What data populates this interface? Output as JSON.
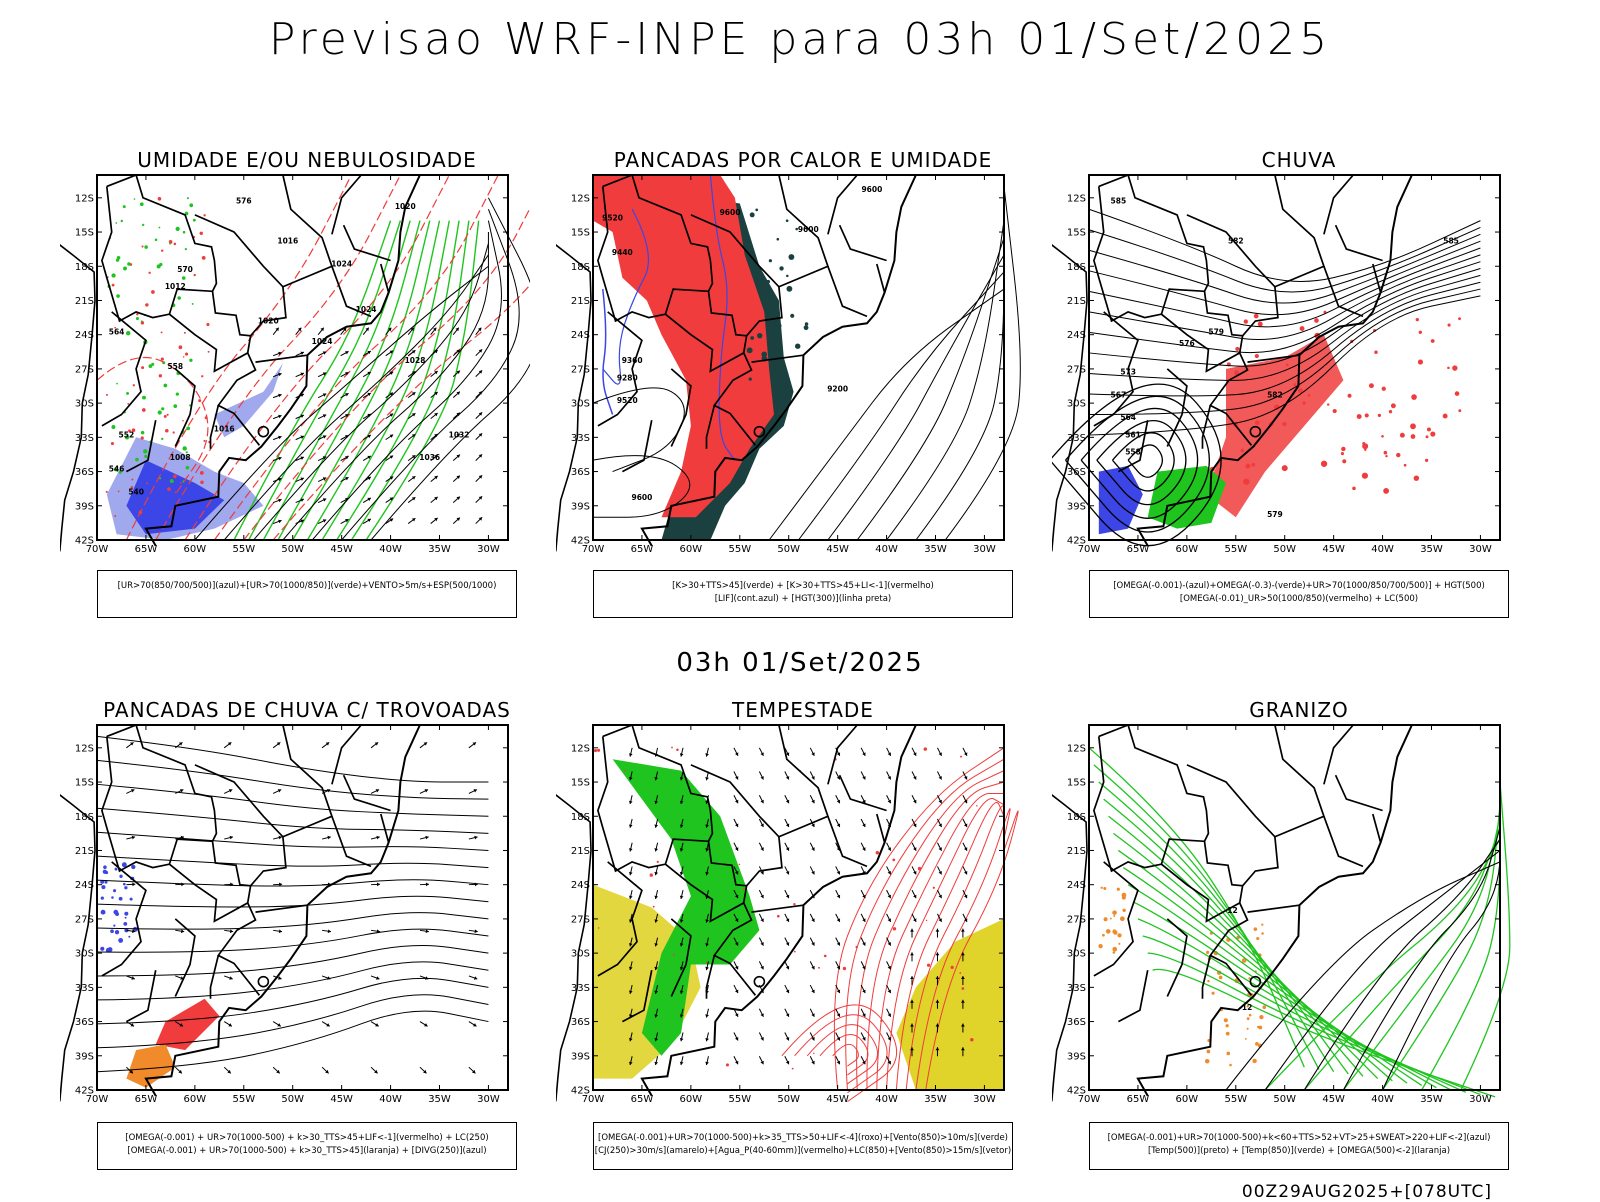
{
  "title": "Previsao WRF-INPE  para 03h 01/Set/2025",
  "mid_time": "03h 01/Set/2025",
  "run_tag": "00Z29AUG2025+[078UTC]",
  "axes": {
    "lat_labels": [
      "12S",
      "15S",
      "18S",
      "21S",
      "24S",
      "27S",
      "30S",
      "33S",
      "36S",
      "39S",
      "42S"
    ],
    "lon_labels": [
      "70W",
      "65W",
      "60W",
      "55W",
      "50W",
      "45W",
      "40W",
      "35W",
      "30W"
    ]
  },
  "colors": {
    "red": "#f03c3c",
    "green": "#1fc41f",
    "blue": "#3c46e6",
    "lightblue": "#a0a8ee",
    "darkteal": "#1a4040",
    "yellow": "#e0d32a",
    "orange": "#f08a2a",
    "purple": "#8040c0"
  },
  "panels": [
    {
      "id": "p1",
      "title": "UMIDADE E/OU NEBULOSIDADE",
      "legend": [
        "[UR>70(850/700/500)](azul)+[UR>70(1000/850)](verde)+VENTO>5m/s+ESP(500/1000)"
      ],
      "contour_labels": [
        "1020",
        "1016",
        "1024",
        "1012",
        "1024",
        "1020",
        "1024",
        "1008",
        "1032",
        "1036",
        "1016",
        "1028",
        "576",
        "570",
        "564",
        "558",
        "552",
        "546",
        "540"
      ]
    },
    {
      "id": "p2",
      "title": "PANCADAS POR CALOR E UMIDADE",
      "legend": [
        "[K>30+TTS>45](verde) + [K>30+TTS>45+LI<-1](vermelho)",
        "[LIF](cont.azul) + [HGT(300)](linha preta)"
      ],
      "contour_labels": [
        "9600",
        "9520",
        "9600",
        "9600",
        "9440",
        "9360",
        "9280",
        "9520",
        "9200",
        "9600"
      ]
    },
    {
      "id": "p3",
      "title": "CHUVA",
      "legend": [
        "[OMEGA(-0.001)-(azul)+OMEGA(-0.3)-(verde)+UR>70(1000/850/700/500)] + HGT(500)",
        "[OMEGA(-0.01)_UR>50(1000/850)(vermelho) + LC(500)"
      ],
      "contour_labels": [
        "585",
        "582",
        "579",
        "576",
        "573",
        "567",
        "564",
        "561",
        "558",
        "585",
        "582",
        "579"
      ]
    },
    {
      "id": "p4",
      "title": "PANCADAS DE CHUVA C/ TROVOADAS",
      "legend": [
        "[OMEGA(-0.001) + UR>70(1000-500) + k>30_TTS>45+LIF<-1](vermelho) + LC(250)",
        "[OMEGA(-0.001) + UR>70(1000-500) + k>30_TTS>45](laranja) + [DIVG(250)](azul)"
      ],
      "contour_labels": []
    },
    {
      "id": "p5",
      "title": "TEMPESTADE",
      "legend": [
        "[OMEGA(-0.001)+UR>70(1000-500)+k>35_TTS>50+LIF<-4](roxo)+[Vento(850)>10m/s](verde)",
        "[CJ(250)>30m/s](amarelo)+[Agua_P(40-60mm)](vermelho)+LC(850)+[Vento(850)>15m/s](vetor)"
      ],
      "contour_labels": []
    },
    {
      "id": "p6",
      "title": "GRANIZO",
      "legend": [
        "[OMEGA(-0.001)+UR>70(1000-500)+k<60+TTS>52+VT>25+SWEAT>220+LIF<-2](azul)",
        "[Temp(500)](preto) + [Temp(850)](verde) + [OMEGA(500)<-2](laranja)"
      ],
      "contour_labels": [
        "-12",
        "-12"
      ]
    }
  ]
}
